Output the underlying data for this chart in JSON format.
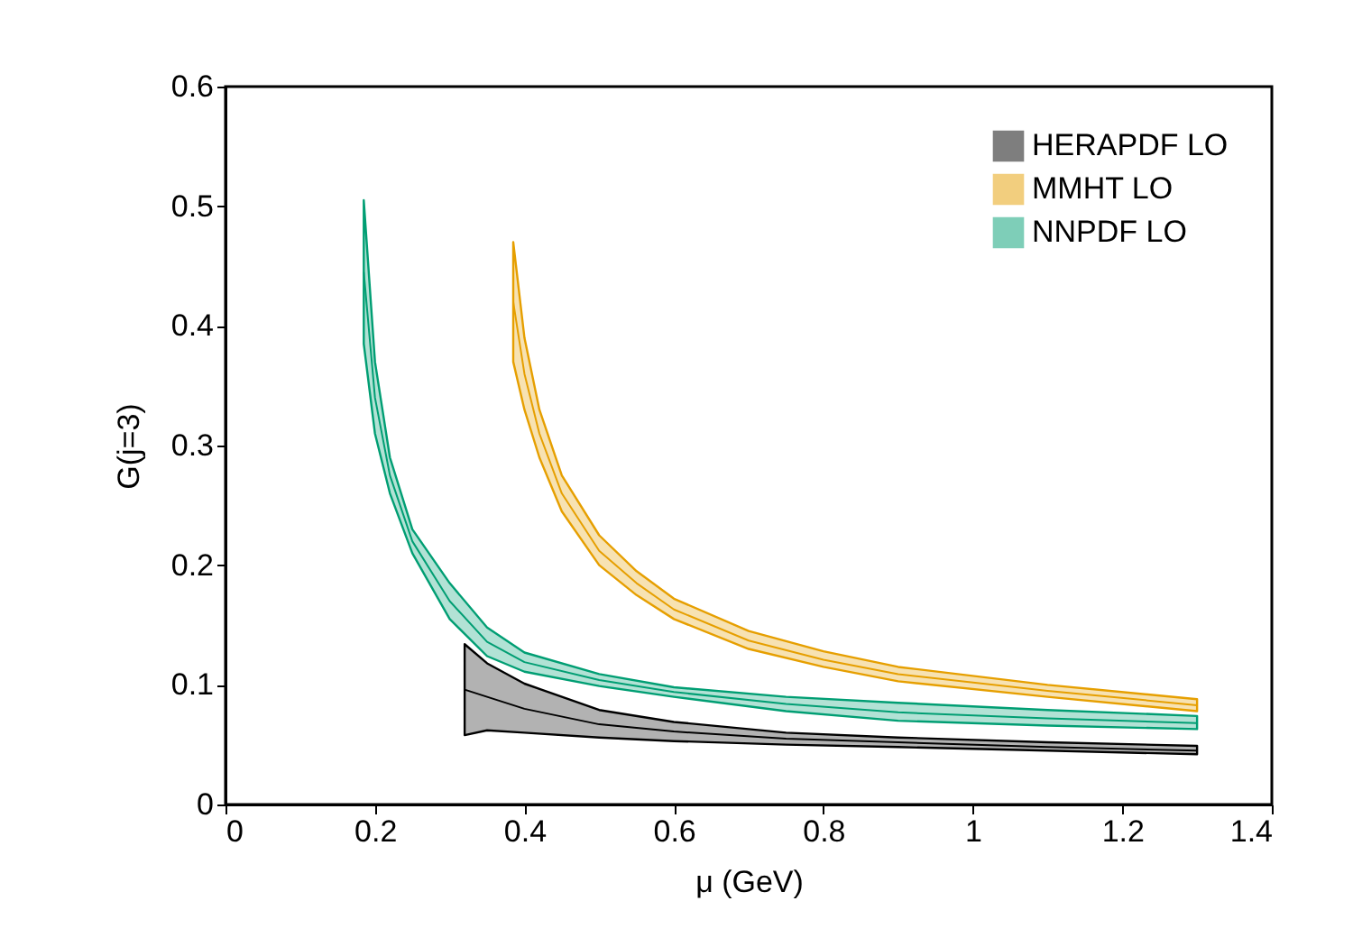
{
  "chart_data": {
    "type": "line",
    "xlabel": "μ (GeV)",
    "ylabel": "G(j=3)",
    "xlim": [
      0,
      1.4
    ],
    "xticks": [
      0,
      0.2,
      0.4,
      0.6,
      0.8,
      1,
      1.2,
      1.4
    ],
    "ylim": [
      0,
      0.6
    ],
    "yticks": [
      0,
      0.1,
      0.2,
      0.3,
      0.4,
      0.5,
      0.6
    ],
    "grid": false,
    "legend": "top right",
    "series": [
      {
        "name": "HERAPDF LO",
        "color": "#000000",
        "x": [
          0.32,
          0.35,
          0.4,
          0.5,
          0.6,
          0.75,
          0.9,
          1.1,
          1.3
        ],
        "values": [
          0.096,
          0.09,
          0.08,
          0.067,
          0.061,
          0.055,
          0.052,
          0.048,
          0.045
        ],
        "lower": [
          0.058,
          0.062,
          0.06,
          0.056,
          0.053,
          0.05,
          0.048,
          0.045,
          0.042
        ],
        "upper": [
          0.134,
          0.118,
          0.101,
          0.079,
          0.069,
          0.06,
          0.056,
          0.052,
          0.049
        ]
      },
      {
        "name": "MMHT LO",
        "color": "#e69f00",
        "x": [
          0.385,
          0.4,
          0.42,
          0.45,
          0.5,
          0.55,
          0.6,
          0.7,
          0.8,
          0.9,
          1.1,
          1.3
        ],
        "values": [
          0.42,
          0.36,
          0.31,
          0.26,
          0.212,
          0.185,
          0.163,
          0.137,
          0.121,
          0.109,
          0.095,
          0.083
        ],
        "lower": [
          0.37,
          0.33,
          0.29,
          0.245,
          0.2,
          0.175,
          0.155,
          0.13,
          0.115,
          0.103,
          0.09,
          0.078
        ],
        "upper": [
          0.47,
          0.39,
          0.33,
          0.275,
          0.225,
          0.195,
          0.172,
          0.145,
          0.128,
          0.115,
          0.1,
          0.088
        ]
      },
      {
        "name": "NNPDF LO",
        "color": "#009e73",
        "x": [
          0.185,
          0.2,
          0.22,
          0.25,
          0.3,
          0.35,
          0.4,
          0.5,
          0.6,
          0.75,
          0.9,
          1.1,
          1.3
        ],
        "values": [
          0.445,
          0.34,
          0.275,
          0.22,
          0.17,
          0.136,
          0.119,
          0.104,
          0.094,
          0.084,
          0.077,
          0.072,
          0.068
        ],
        "lower": [
          0.385,
          0.31,
          0.26,
          0.21,
          0.155,
          0.124,
          0.111,
          0.099,
          0.09,
          0.078,
          0.07,
          0.066,
          0.063
        ],
        "upper": [
          0.505,
          0.37,
          0.29,
          0.23,
          0.185,
          0.148,
          0.127,
          0.109,
          0.098,
          0.09,
          0.085,
          0.079,
          0.074
        ]
      }
    ]
  }
}
